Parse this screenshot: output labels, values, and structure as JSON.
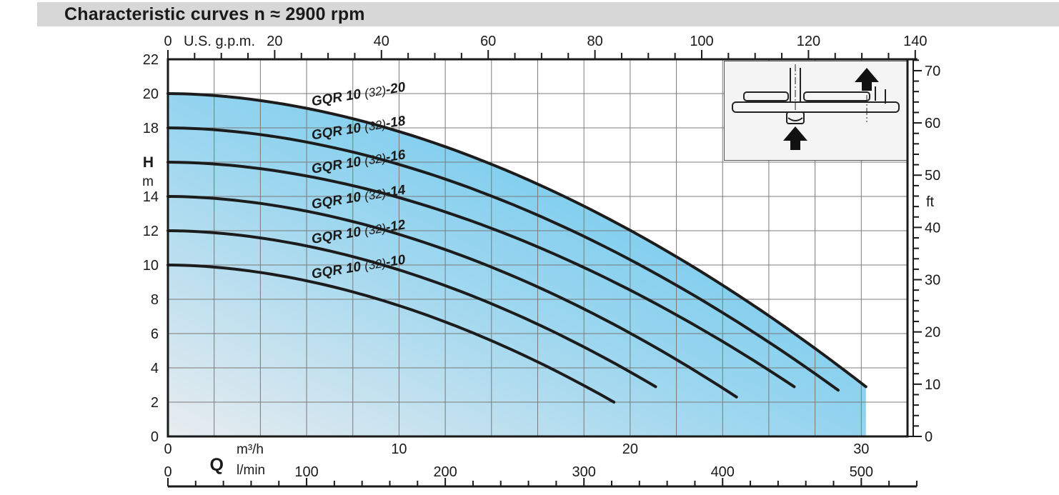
{
  "chart_data": {
    "type": "line",
    "title": "Characteristic curves n ≈ 2900 rpm",
    "axes": {
      "top": {
        "unit": "U.S. g.p.m.",
        "ticks": [
          0,
          20,
          40,
          60,
          80,
          100,
          120,
          140
        ],
        "minor_step": 5,
        "max": 140
      },
      "left": {
        "symbol": "H",
        "unit": "m",
        "ticks": [
          0,
          2,
          4,
          6,
          8,
          10,
          12,
          14,
          16,
          18,
          20,
          22
        ],
        "symbol_replaces_tick": 16,
        "max": 22
      },
      "right": {
        "unit": "ft",
        "ticks": [
          0,
          10,
          20,
          30,
          40,
          50,
          60,
          70
        ],
        "minor_step": 2,
        "max": 72,
        "unit_label_at_ft": 45
      },
      "bottom_m3h": {
        "unit": "m³/h",
        "ticks": [
          0,
          10,
          20,
          30
        ],
        "max": 32
      },
      "bottom_lmin": {
        "unit": "l/min",
        "ticks": [
          0,
          100,
          200,
          300,
          400,
          500
        ],
        "minor_step": 20,
        "ruler_end": 540
      },
      "flow_symbol": "Q",
      "grid_step_x_m3h": 2,
      "grid_step_y_m": 2
    },
    "curve_exponent": 1.85,
    "series": [
      {
        "name": "GQR 10 (32)-20",
        "label_parts": [
          "GQR 10 ",
          "(32)",
          "-20"
        ],
        "h0_m": 20,
        "q_end_m3h": 30.2,
        "h_end_m": 2.9,
        "points": [
          [
            0,
            20
          ],
          [
            5,
            19.4
          ],
          [
            10,
            17.8
          ],
          [
            15,
            15.3
          ],
          [
            20,
            12.0
          ],
          [
            25,
            8.0
          ],
          [
            30.2,
            2.9
          ]
        ]
      },
      {
        "name": "GQR 10 (32)-18",
        "label_parts": [
          "GQR 10 ",
          "(32)",
          "-18"
        ],
        "h0_m": 18,
        "q_end_m3h": 29.0,
        "h_end_m": 2.7,
        "points": [
          [
            0,
            18
          ],
          [
            5,
            17.4
          ],
          [
            10,
            15.9
          ],
          [
            15,
            13.5
          ],
          [
            20,
            10.3
          ],
          [
            25,
            6.4
          ],
          [
            29,
            2.7
          ]
        ]
      },
      {
        "name": "GQR 10 (32)-16",
        "label_parts": [
          "GQR 10 ",
          "(32)",
          "-16"
        ],
        "h0_m": 16,
        "q_end_m3h": 27.1,
        "h_end_m": 2.9,
        "points": [
          [
            0,
            16
          ],
          [
            5,
            15.4
          ],
          [
            10,
            13.9
          ],
          [
            15,
            11.6
          ],
          [
            20,
            8.5
          ],
          [
            25,
            4.7
          ],
          [
            27.1,
            2.9
          ]
        ]
      },
      {
        "name": "GQR 10 (32)-14",
        "label_parts": [
          "GQR 10 ",
          "(32)",
          "-14"
        ],
        "h0_m": 14,
        "q_end_m3h": 24.6,
        "h_end_m": 2.3,
        "points": [
          [
            0,
            14
          ],
          [
            5,
            13.4
          ],
          [
            10,
            11.8
          ],
          [
            15,
            9.3
          ],
          [
            20,
            6.0
          ],
          [
            24.6,
            2.3
          ]
        ]
      },
      {
        "name": "GQR 10 (32)-12",
        "label_parts": [
          "GQR 10 ",
          "(32)",
          "-12"
        ],
        "h0_m": 12,
        "q_end_m3h": 21.1,
        "h_end_m": 2.9,
        "points": [
          [
            0,
            12
          ],
          [
            5,
            11.4
          ],
          [
            10,
            9.7
          ],
          [
            15,
            7.2
          ],
          [
            20,
            3.8
          ],
          [
            21.1,
            2.9
          ]
        ]
      },
      {
        "name": "GQR 10 (32)-10",
        "label_parts": [
          "GQR 10 ",
          "(32)",
          "-10"
        ],
        "h0_m": 10,
        "q_end_m3h": 19.3,
        "h_end_m": 2.0,
        "points": [
          [
            0,
            10
          ],
          [
            5,
            9.3
          ],
          [
            10,
            7.6
          ],
          [
            15,
            5.0
          ],
          [
            19.3,
            2.0
          ]
        ]
      }
    ],
    "inset": {
      "description": "pump cross-section schematic with flow direction arrows",
      "icons": [
        "up-arrow",
        "up-arrow"
      ]
    },
    "colors": {
      "title_bar": "#d7d7d7",
      "text": "#1a1a1a",
      "grid": "#7a7a7a",
      "curve": "#1c1c1c",
      "border": "#1a1a1a",
      "fill_gradient": [
        "#e8ecef",
        "#9bd6ef",
        "#55c2ee"
      ],
      "inset_bg": "#f4f4f4"
    }
  }
}
